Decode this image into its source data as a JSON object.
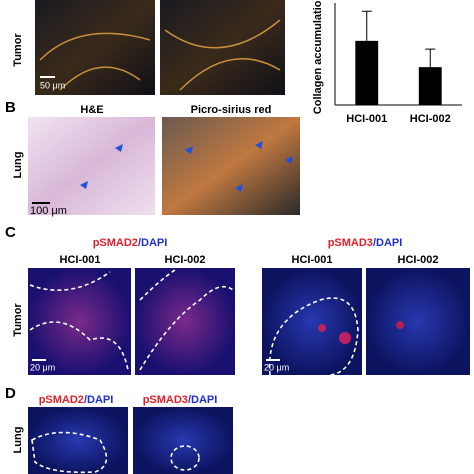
{
  "chart_data": {
    "type": "bar",
    "y_label": "Collagen accumulation",
    "categories": [
      "HCI-001",
      "HCI-002"
    ],
    "values": [
      1.95,
      1.15
    ],
    "errors": [
      0.9,
      0.55
    ],
    "color": "#000000",
    "ylim": [
      0,
      3.1
    ]
  },
  "panel_a": {
    "row_label": "Tumor",
    "scale_bar": "50 μm"
  },
  "panel_b": {
    "letter": "B",
    "headers": [
      "H&E",
      "Picro-sirius red"
    ],
    "row_label": "Lung",
    "scale_bar": "100 μm"
  },
  "panel_c": {
    "letter": "C",
    "groups": [
      {
        "stain": "pSMAD2",
        "counter": "/DAPI",
        "columns": [
          "HCI-001",
          "HCI-002"
        ]
      },
      {
        "stain": "pSMAD3",
        "counter": "/DAPI",
        "columns": [
          "HCI-001",
          "HCI-002"
        ]
      }
    ],
    "row_label": "Tumor",
    "scale_bar": "20 μm"
  },
  "panel_d": {
    "letter": "D",
    "groups": [
      {
        "stain": "pSMAD2",
        "counter": "/DAPI"
      },
      {
        "stain": "pSMAD3",
        "counter": "/DAPI"
      }
    ],
    "row_label": "Lung"
  }
}
